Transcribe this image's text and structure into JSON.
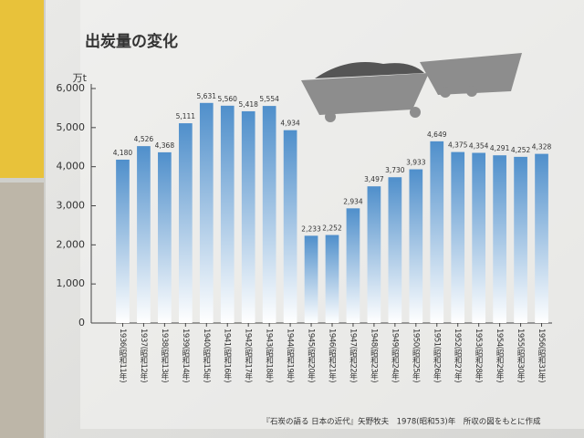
{
  "chart_data": {
    "type": "bar",
    "title": "出炭量の変化",
    "ylabel": "万t",
    "categories": [
      "1936(昭和11年)",
      "1937(昭和12年)",
      "1938(昭和13年)",
      "1939(昭和14年)",
      "1940(昭和15年)",
      "1941(昭和16年)",
      "1942(昭和17年)",
      "1943(昭和18年)",
      "1944(昭和19年)",
      "1945(昭和20年)",
      "1946(昭和21年)",
      "1947(昭和22年)",
      "1948(昭和23年)",
      "1949(昭和24年)",
      "1950(昭和25年)",
      "1951(昭和26年)",
      "1952(昭和27年)",
      "1953(昭和28年)",
      "1954(昭和29年)",
      "1955(昭和30年)",
      "1956(昭和31年)"
    ],
    "values": [
      4180,
      4526,
      4368,
      5111,
      5631,
      5560,
      5418,
      5554,
      4934,
      2233,
      2252,
      2934,
      3497,
      3730,
      3933,
      4649,
      4375,
      4354,
      4291,
      4252,
      4328
    ],
    "value_labels": [
      "4,180",
      "4,526",
      "4,368",
      "5,111",
      "5,631",
      "5,560",
      "5,418",
      "5,554",
      "4,934",
      "2,233",
      "2,252",
      "2,934",
      "3,497",
      "3,730",
      "3,933",
      "4,649",
      "4,375",
      "4,354",
      "4,291",
      "4,252",
      "4,328"
    ],
    "color": "#4f8fcb",
    "ylim": [
      0,
      6000
    ],
    "yticks": [
      0,
      {
        "value": 1000,
        "label": "1,000"
      },
      {
        "value": 2000,
        "label": "2,000"
      },
      {
        "value": 3000,
        "label": "3,000"
      },
      {
        "value": 4000,
        "label": "4,000"
      },
      {
        "value": 5000,
        "label": "5,000"
      },
      {
        "value": 6000,
        "label": "6,000"
      }
    ],
    "source": "『石炭の語る 日本の近代』矢野牧夫　1978(昭和53)年　所収の図をもとに作成"
  }
}
